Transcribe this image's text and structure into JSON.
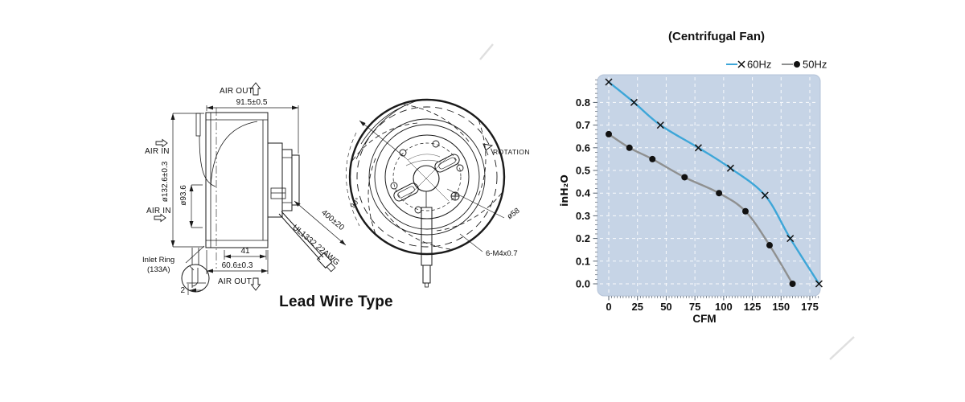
{
  "drawing": {
    "caption": "Lead Wire Type",
    "labels": {
      "air_out_top": "AIR OUT",
      "air_in_upper": "AIR IN",
      "air_in_lower": "AIR IN",
      "air_out_bottom": "AIR OUT",
      "inlet_ring_line1": "Inlet Ring",
      "inlet_ring_line2": "(133A)",
      "rotation": "ROTATION"
    },
    "dimensions": {
      "overall_depth": "91.5±0.5",
      "outer_diameter": "ø132.6±0.3",
      "inlet_diameter": "ø93.6",
      "motor_depth": "41",
      "housing_width": "60.6±0.3",
      "inlet_lip": "2",
      "lead_length": "400±20",
      "lead_spec": "UL1332 22AWG",
      "hub_diameter": "ø58",
      "mounting_holes": "6-M4x0.7",
      "blade_angle": "90°"
    }
  },
  "chart": {
    "title": "(Centrifugal Fan)",
    "xlabel": "CFM",
    "ylabel": "inH₂O",
    "legend": [
      {
        "label": "60Hz",
        "marker": "x",
        "color": "#3da6d8"
      },
      {
        "label": "50Hz",
        "marker": "dot",
        "color": "#8f9090"
      }
    ]
  },
  "chart_data": {
    "type": "line",
    "title": "(Centrifugal Fan)",
    "xlabel": "CFM",
    "ylabel": "inH2O",
    "xlim": [
      -10,
      184
    ],
    "ylim": [
      -0.053,
      0.922
    ],
    "xticks": [
      0,
      25,
      50,
      75,
      100,
      125,
      150,
      175
    ],
    "yticks": [
      0,
      0.1,
      0.2,
      0.3,
      0.4,
      0.5,
      0.6,
      0.7,
      0.8
    ],
    "ytick_labels": [
      "0.0",
      "0.1",
      "0.2",
      "0.3",
      "0.4",
      "0.5",
      "0.6",
      "0.7",
      "0.8"
    ],
    "grid": true,
    "legend_position": "top-right",
    "plot_bg": "#c6d4e6",
    "series": [
      {
        "name": "60Hz",
        "color": "#3da6d8",
        "marker": "x",
        "points": [
          [
            0,
            0.89
          ],
          [
            22,
            0.8
          ],
          [
            45,
            0.7
          ],
          [
            78,
            0.6
          ],
          [
            106,
            0.51
          ],
          [
            136,
            0.39
          ],
          [
            158,
            0.2
          ],
          [
            183,
            0.0
          ]
        ]
      },
      {
        "name": "50Hz",
        "color": "#8f9090",
        "marker": "dot",
        "points": [
          [
            0,
            0.66
          ],
          [
            18,
            0.6
          ],
          [
            38,
            0.55
          ],
          [
            66,
            0.47
          ],
          [
            96,
            0.4
          ],
          [
            119,
            0.32
          ],
          [
            140,
            0.17
          ],
          [
            160,
            0.0
          ]
        ]
      }
    ]
  }
}
